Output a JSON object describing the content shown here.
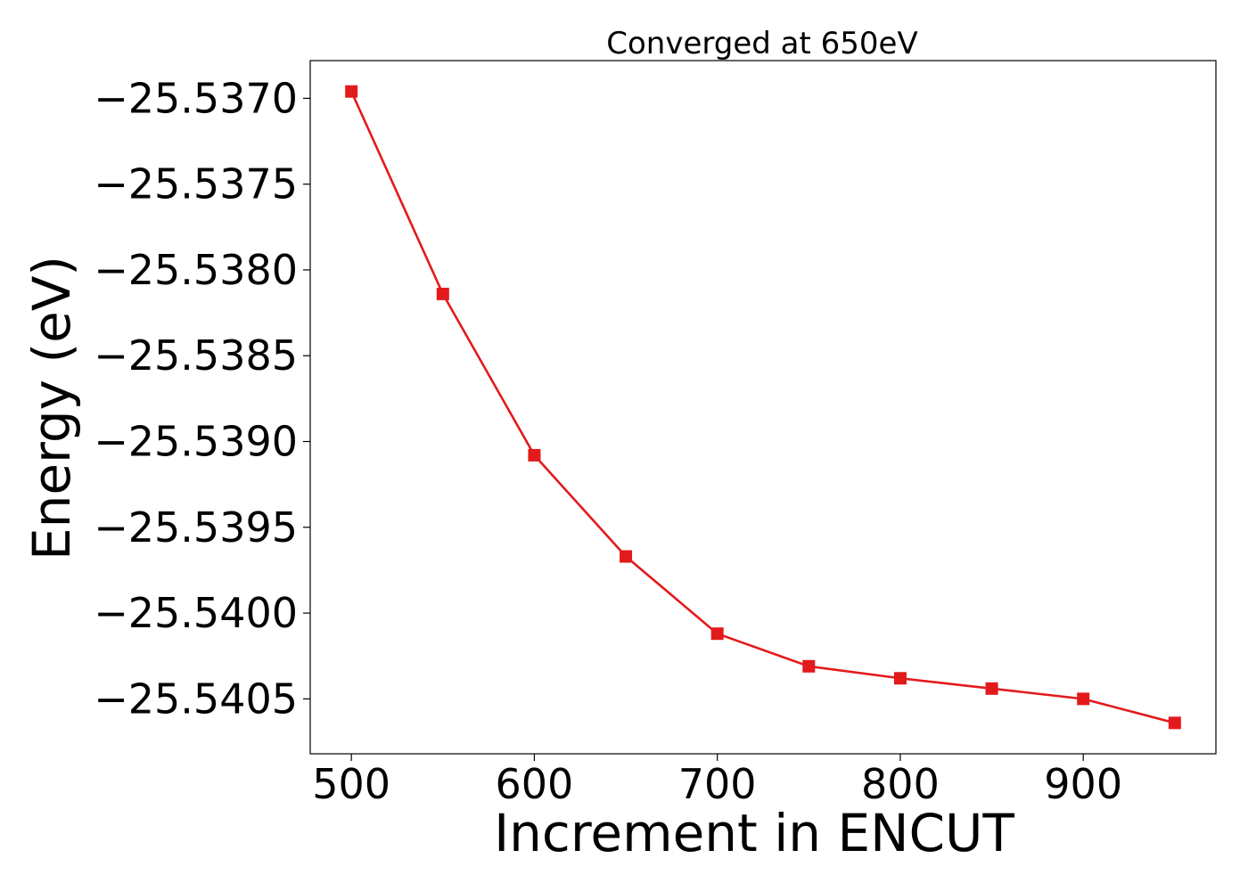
{
  "chart_data": {
    "type": "line",
    "title": "Converged at 650eV",
    "xlabel": "Increment in ENCUT",
    "ylabel": "Energy (eV)",
    "x": [
      500,
      550,
      600,
      650,
      700,
      750,
      800,
      850,
      900,
      950
    ],
    "series": [
      {
        "values": [
          -25.53696,
          -25.53814,
          -25.53908,
          -25.53967,
          -25.54012,
          -25.54031,
          -25.54038,
          -25.54044,
          -25.5405,
          -25.54064
        ],
        "color": "#e31a1c",
        "marker": "square"
      }
    ],
    "xlim": [
      477.5,
      972.5
    ],
    "ylim": [
      -25.54082,
      -25.53678
    ],
    "xticks": [
      500,
      600,
      700,
      800,
      900
    ],
    "xtick_labels": [
      "500",
      "600",
      "700",
      "800",
      "900"
    ],
    "yticks": [
      -25.537,
      -25.5375,
      -25.538,
      -25.5385,
      -25.539,
      -25.5395,
      -25.54,
      -25.5405
    ],
    "ytick_labels": [
      "−25.5370",
      "−25.5375",
      "−25.5380",
      "−25.5385",
      "−25.5390",
      "−25.5395",
      "−25.5400",
      "−25.5405"
    ],
    "grid": false,
    "legend": false
  }
}
